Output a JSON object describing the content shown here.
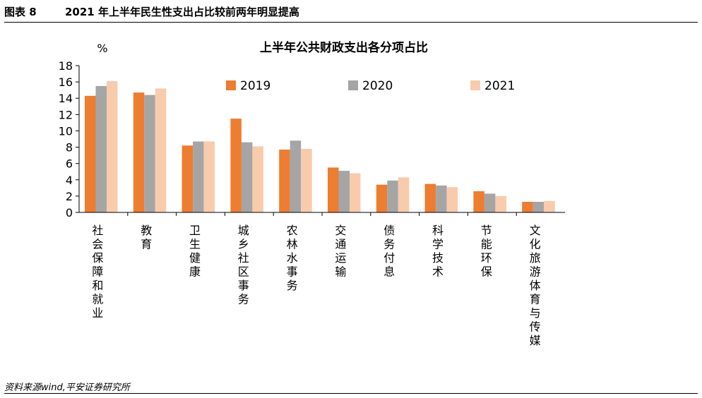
{
  "header": {
    "figure_label": "图表 8",
    "figure_title": "2021 年上半年民生性支出占比较前两年明显提高"
  },
  "source": "资料来源wind,平安证券研究所",
  "colors": {
    "2019": "#ED7D31",
    "2020": "#A5A5A5",
    "2021": "#F8CBAD",
    "axis": "#000000"
  },
  "chart_data": {
    "type": "bar",
    "title": "上半年公共财政支出各分项占比",
    "ylabel": "%",
    "xlabel": "",
    "ylim": [
      0,
      18
    ],
    "yticks": [
      "0",
      "2",
      "4",
      "6",
      "8",
      "10",
      "12",
      "14",
      "16",
      "18"
    ],
    "legend_position": "top-right",
    "categories": [
      "社会保障和就业",
      "教育",
      "卫生健康",
      "城乡社区事务",
      "农林水事务",
      "交通运输",
      "债务付息",
      "科学技术",
      "节能环保",
      "文化旅游体育与传媒"
    ],
    "series": [
      {
        "name": "2019",
        "values": [
          14.3,
          14.7,
          8.2,
          11.5,
          7.7,
          5.5,
          3.4,
          3.5,
          2.6,
          1.3
        ]
      },
      {
        "name": "2020",
        "values": [
          15.5,
          14.4,
          8.7,
          8.6,
          8.8,
          5.1,
          3.9,
          3.3,
          2.3,
          1.3
        ]
      },
      {
        "name": "2021",
        "values": [
          16.1,
          15.2,
          8.7,
          8.1,
          7.8,
          4.8,
          4.3,
          3.1,
          2.0,
          1.4
        ]
      }
    ]
  }
}
